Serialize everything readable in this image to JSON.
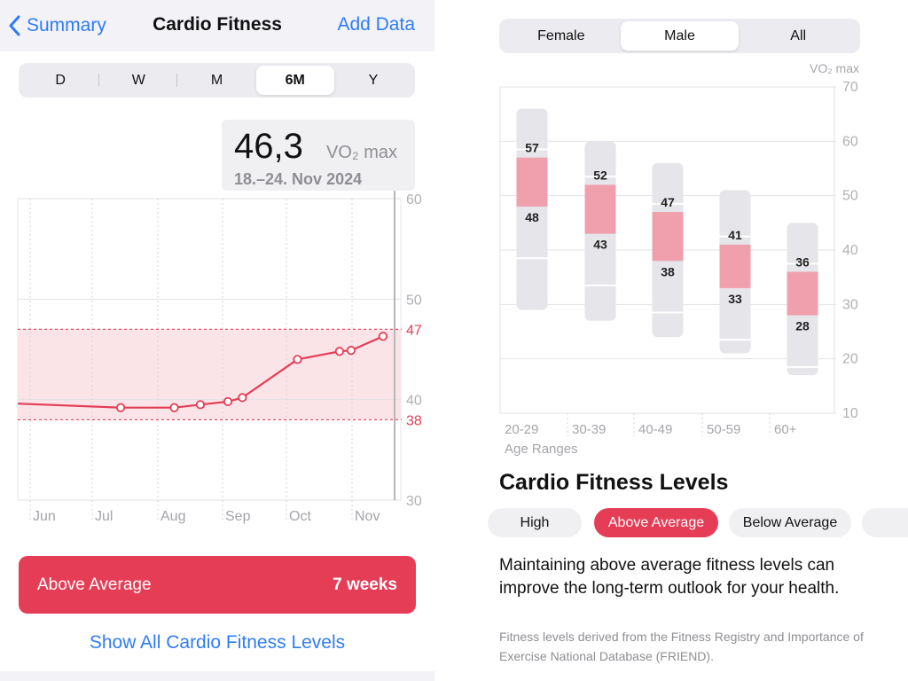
{
  "nav": {
    "back_label": "Summary",
    "title": "Cardio Fitness",
    "add_label": "Add Data"
  },
  "ranges": [
    "D",
    "W",
    "M",
    "6M",
    "Y"
  ],
  "active_range": "6M",
  "callout": {
    "value": "46,3",
    "unit": "VO₂ max",
    "date": "18.–24. Nov 2024"
  },
  "chart_data": [
    {
      "type": "line",
      "x": [
        "Jun",
        "Jul",
        "Aug",
        "Sep",
        "Oct",
        "Nov"
      ],
      "y_ticks": [
        "60",
        "50",
        "40",
        "30"
      ],
      "ylim": [
        30,
        60
      ],
      "band": {
        "low": 38,
        "high": 47,
        "low_label": "38",
        "high_label": "47"
      },
      "series": [
        {
          "values": [
            {
              "week": 0,
              "value": 39.6,
              "point": false
            },
            {
              "week": 7.1,
              "value": 39.2,
              "point": true
            },
            {
              "week": 10.8,
              "value": 39.2,
              "point": true
            },
            {
              "week": 12.6,
              "value": 39.5,
              "point": true
            },
            {
              "week": 14.5,
              "value": 39.8,
              "point": true
            },
            {
              "week": 15.5,
              "value": 40.2,
              "point": true
            },
            {
              "week": 19.3,
              "value": 44.0,
              "point": true
            },
            {
              "week": 22.2,
              "value": 44.8,
              "point": true
            },
            {
              "week": 23.0,
              "value": 44.9,
              "point": true
            },
            {
              "week": 25.2,
              "value": 46.3,
              "point": true
            }
          ]
        }
      ],
      "colors": {
        "line": "#e33e56",
        "band": "#fbe4e8",
        "band_line": "#e33e56"
      }
    },
    {
      "type": "bar",
      "categories": [
        "20-29",
        "30-39",
        "40-49",
        "50-59",
        "60+"
      ],
      "x_title": "Age Ranges",
      "y_unit": "VO₂ max",
      "y_ticks": [
        "70",
        "60",
        "50",
        "40",
        "30",
        "20",
        "10"
      ],
      "ylim": [
        10,
        70
      ],
      "series": [
        {
          "full_min": 29,
          "full_max": 66,
          "above_avg_low": 48,
          "above_avg_high": 57,
          "low_label": "48",
          "high_label": "57"
        },
        {
          "full_min": 27,
          "full_max": 60,
          "above_avg_low": 43,
          "above_avg_high": 52,
          "low_label": "43",
          "high_label": "52"
        },
        {
          "full_min": 24,
          "full_max": 56,
          "above_avg_low": 38,
          "above_avg_high": 47,
          "low_label": "38",
          "high_label": "47"
        },
        {
          "full_min": 21,
          "full_max": 51,
          "above_avg_low": 33,
          "above_avg_high": 41,
          "low_label": "33",
          "high_label": "41"
        },
        {
          "full_min": 17,
          "full_max": 45,
          "above_avg_low": 28,
          "above_avg_high": 36,
          "low_label": "28",
          "high_label": "36"
        }
      ],
      "colors": {
        "track": "#e5e5ea",
        "highlight": "#f0a0ad"
      }
    }
  ],
  "level_bar": {
    "label": "Above Average",
    "duration": "7 weeks",
    "color": "#e63d57"
  },
  "show_all_label": "Show All Cardio Fitness Levels",
  "sex_tabs": [
    "Female",
    "Male",
    "All"
  ],
  "active_sex": "Male",
  "levels": {
    "title": "Cardio Fitness Levels",
    "chips": [
      "High",
      "Above Average",
      "Below Average"
    ],
    "active_chip": "Above Average",
    "description": "Maintaining above average fitness levels can improve the long-term outlook for your health.",
    "source": "Fitness levels derived from the Fitness Registry and Importance of Exercise National Database (FRIEND)."
  }
}
